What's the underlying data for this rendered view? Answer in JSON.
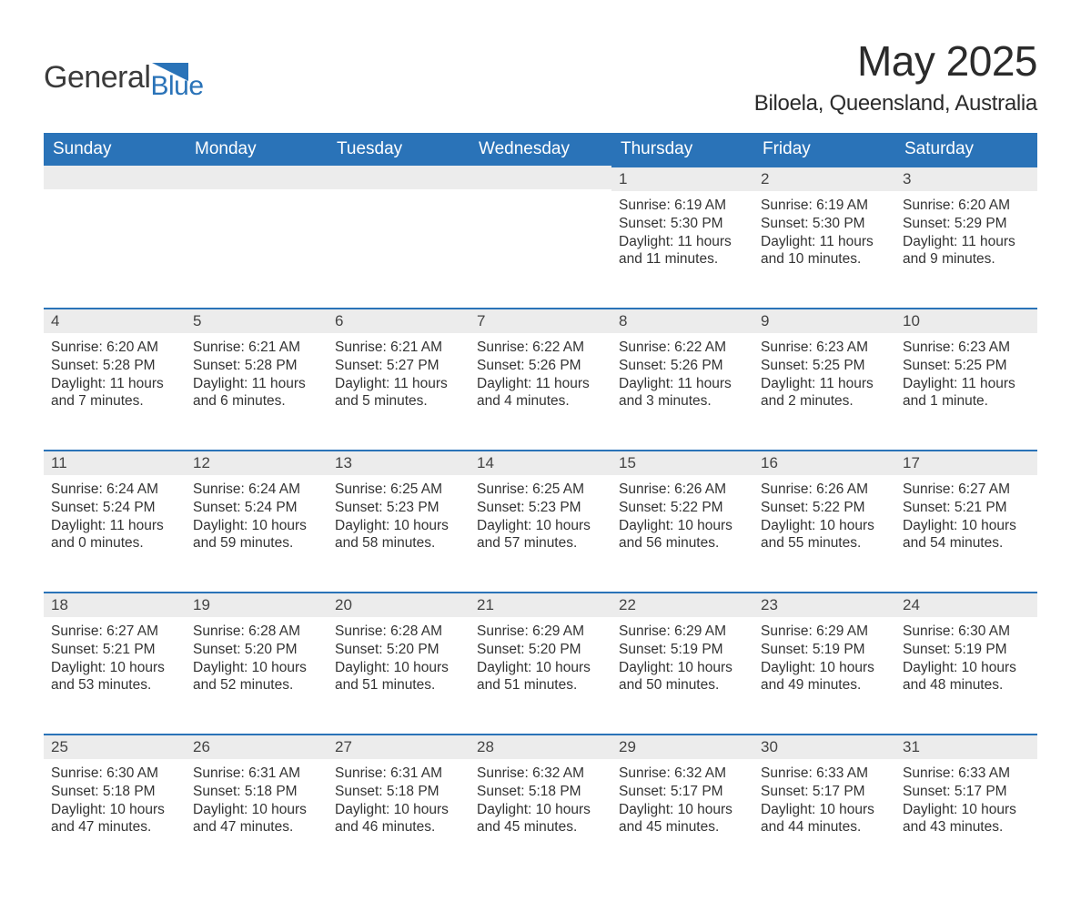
{
  "brand": {
    "word1": "General",
    "word2": "Blue",
    "text_color": "#3b3b3b",
    "accent_color": "#2a73b8"
  },
  "title": "May 2025",
  "location": "Biloela, Queensland, Australia",
  "colors": {
    "header_bg": "#2a73b8",
    "header_text": "#ffffff",
    "daynum_bg": "#ececec",
    "daynum_border": "#2a73b8",
    "body_text": "#333333",
    "page_bg": "#ffffff"
  },
  "typography": {
    "title_fontsize": 46,
    "location_fontsize": 24,
    "header_fontsize": 19,
    "daynum_fontsize": 17,
    "body_fontsize": 15.5
  },
  "weekdays": [
    "Sunday",
    "Monday",
    "Tuesday",
    "Wednesday",
    "Thursday",
    "Friday",
    "Saturday"
  ],
  "weeks": [
    [
      null,
      null,
      null,
      null,
      {
        "n": "1",
        "sunrise": "Sunrise: 6:19 AM",
        "sunset": "Sunset: 5:30 PM",
        "day1": "Daylight: 11 hours",
        "day2": "and 11 minutes."
      },
      {
        "n": "2",
        "sunrise": "Sunrise: 6:19 AM",
        "sunset": "Sunset: 5:30 PM",
        "day1": "Daylight: 11 hours",
        "day2": "and 10 minutes."
      },
      {
        "n": "3",
        "sunrise": "Sunrise: 6:20 AM",
        "sunset": "Sunset: 5:29 PM",
        "day1": "Daylight: 11 hours",
        "day2": "and 9 minutes."
      }
    ],
    [
      {
        "n": "4",
        "sunrise": "Sunrise: 6:20 AM",
        "sunset": "Sunset: 5:28 PM",
        "day1": "Daylight: 11 hours",
        "day2": "and 7 minutes."
      },
      {
        "n": "5",
        "sunrise": "Sunrise: 6:21 AM",
        "sunset": "Sunset: 5:28 PM",
        "day1": "Daylight: 11 hours",
        "day2": "and 6 minutes."
      },
      {
        "n": "6",
        "sunrise": "Sunrise: 6:21 AM",
        "sunset": "Sunset: 5:27 PM",
        "day1": "Daylight: 11 hours",
        "day2": "and 5 minutes."
      },
      {
        "n": "7",
        "sunrise": "Sunrise: 6:22 AM",
        "sunset": "Sunset: 5:26 PM",
        "day1": "Daylight: 11 hours",
        "day2": "and 4 minutes."
      },
      {
        "n": "8",
        "sunrise": "Sunrise: 6:22 AM",
        "sunset": "Sunset: 5:26 PM",
        "day1": "Daylight: 11 hours",
        "day2": "and 3 minutes."
      },
      {
        "n": "9",
        "sunrise": "Sunrise: 6:23 AM",
        "sunset": "Sunset: 5:25 PM",
        "day1": "Daylight: 11 hours",
        "day2": "and 2 minutes."
      },
      {
        "n": "10",
        "sunrise": "Sunrise: 6:23 AM",
        "sunset": "Sunset: 5:25 PM",
        "day1": "Daylight: 11 hours",
        "day2": "and 1 minute."
      }
    ],
    [
      {
        "n": "11",
        "sunrise": "Sunrise: 6:24 AM",
        "sunset": "Sunset: 5:24 PM",
        "day1": "Daylight: 11 hours",
        "day2": "and 0 minutes."
      },
      {
        "n": "12",
        "sunrise": "Sunrise: 6:24 AM",
        "sunset": "Sunset: 5:24 PM",
        "day1": "Daylight: 10 hours",
        "day2": "and 59 minutes."
      },
      {
        "n": "13",
        "sunrise": "Sunrise: 6:25 AM",
        "sunset": "Sunset: 5:23 PM",
        "day1": "Daylight: 10 hours",
        "day2": "and 58 minutes."
      },
      {
        "n": "14",
        "sunrise": "Sunrise: 6:25 AM",
        "sunset": "Sunset: 5:23 PM",
        "day1": "Daylight: 10 hours",
        "day2": "and 57 minutes."
      },
      {
        "n": "15",
        "sunrise": "Sunrise: 6:26 AM",
        "sunset": "Sunset: 5:22 PM",
        "day1": "Daylight: 10 hours",
        "day2": "and 56 minutes."
      },
      {
        "n": "16",
        "sunrise": "Sunrise: 6:26 AM",
        "sunset": "Sunset: 5:22 PM",
        "day1": "Daylight: 10 hours",
        "day2": "and 55 minutes."
      },
      {
        "n": "17",
        "sunrise": "Sunrise: 6:27 AM",
        "sunset": "Sunset: 5:21 PM",
        "day1": "Daylight: 10 hours",
        "day2": "and 54 minutes."
      }
    ],
    [
      {
        "n": "18",
        "sunrise": "Sunrise: 6:27 AM",
        "sunset": "Sunset: 5:21 PM",
        "day1": "Daylight: 10 hours",
        "day2": "and 53 minutes."
      },
      {
        "n": "19",
        "sunrise": "Sunrise: 6:28 AM",
        "sunset": "Sunset: 5:20 PM",
        "day1": "Daylight: 10 hours",
        "day2": "and 52 minutes."
      },
      {
        "n": "20",
        "sunrise": "Sunrise: 6:28 AM",
        "sunset": "Sunset: 5:20 PM",
        "day1": "Daylight: 10 hours",
        "day2": "and 51 minutes."
      },
      {
        "n": "21",
        "sunrise": "Sunrise: 6:29 AM",
        "sunset": "Sunset: 5:20 PM",
        "day1": "Daylight: 10 hours",
        "day2": "and 51 minutes."
      },
      {
        "n": "22",
        "sunrise": "Sunrise: 6:29 AM",
        "sunset": "Sunset: 5:19 PM",
        "day1": "Daylight: 10 hours",
        "day2": "and 50 minutes."
      },
      {
        "n": "23",
        "sunrise": "Sunrise: 6:29 AM",
        "sunset": "Sunset: 5:19 PM",
        "day1": "Daylight: 10 hours",
        "day2": "and 49 minutes."
      },
      {
        "n": "24",
        "sunrise": "Sunrise: 6:30 AM",
        "sunset": "Sunset: 5:19 PM",
        "day1": "Daylight: 10 hours",
        "day2": "and 48 minutes."
      }
    ],
    [
      {
        "n": "25",
        "sunrise": "Sunrise: 6:30 AM",
        "sunset": "Sunset: 5:18 PM",
        "day1": "Daylight: 10 hours",
        "day2": "and 47 minutes."
      },
      {
        "n": "26",
        "sunrise": "Sunrise: 6:31 AM",
        "sunset": "Sunset: 5:18 PM",
        "day1": "Daylight: 10 hours",
        "day2": "and 47 minutes."
      },
      {
        "n": "27",
        "sunrise": "Sunrise: 6:31 AM",
        "sunset": "Sunset: 5:18 PM",
        "day1": "Daylight: 10 hours",
        "day2": "and 46 minutes."
      },
      {
        "n": "28",
        "sunrise": "Sunrise: 6:32 AM",
        "sunset": "Sunset: 5:18 PM",
        "day1": "Daylight: 10 hours",
        "day2": "and 45 minutes."
      },
      {
        "n": "29",
        "sunrise": "Sunrise: 6:32 AM",
        "sunset": "Sunset: 5:17 PM",
        "day1": "Daylight: 10 hours",
        "day2": "and 45 minutes."
      },
      {
        "n": "30",
        "sunrise": "Sunrise: 6:33 AM",
        "sunset": "Sunset: 5:17 PM",
        "day1": "Daylight: 10 hours",
        "day2": "and 44 minutes."
      },
      {
        "n": "31",
        "sunrise": "Sunrise: 6:33 AM",
        "sunset": "Sunset: 5:17 PM",
        "day1": "Daylight: 10 hours",
        "day2": "and 43 minutes."
      }
    ]
  ]
}
